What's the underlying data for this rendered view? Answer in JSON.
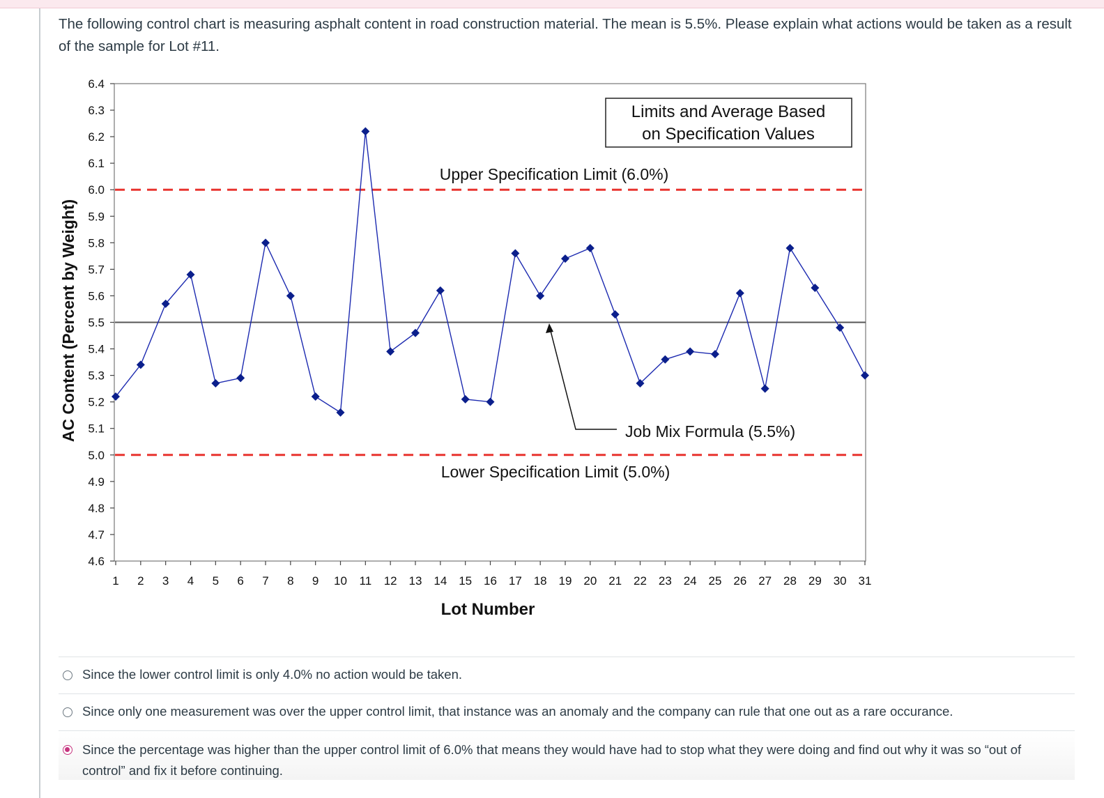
{
  "question": {
    "text": "The following control chart is measuring asphalt content in road construction material. The mean is 5.5%.  Please explain what actions would be taken as a result of the sample for Lot #11."
  },
  "chart_data": {
    "type": "line",
    "ylabel": "AC Content (Percent by Weight)",
    "xlabel": "Lot Number",
    "ylim": [
      4.6,
      6.4
    ],
    "y_ticks": [
      "4.6",
      "4.7",
      "4.8",
      "4.9",
      "5.0",
      "5.1",
      "5.2",
      "5.3",
      "5.4",
      "5.5",
      "5.6",
      "5.7",
      "5.8",
      "5.9",
      "6.0",
      "6.1",
      "6.2",
      "6.3",
      "6.4"
    ],
    "x": [
      1,
      2,
      3,
      4,
      5,
      6,
      7,
      8,
      9,
      10,
      11,
      12,
      13,
      14,
      15,
      16,
      17,
      18,
      19,
      20,
      21,
      22,
      23,
      24,
      25,
      26,
      27,
      28,
      29,
      30,
      31
    ],
    "values": [
      5.22,
      5.34,
      5.57,
      5.68,
      5.27,
      5.29,
      5.8,
      5.6,
      5.22,
      5.16,
      6.22,
      5.39,
      5.46,
      5.62,
      5.21,
      5.2,
      5.76,
      5.6,
      5.74,
      5.78,
      5.53,
      5.27,
      5.36,
      5.39,
      5.38,
      5.61,
      5.25,
      5.78,
      5.63,
      5.48,
      5.3
    ],
    "upper_limit": {
      "value": 6.0,
      "label": "Upper Specification Limit (6.0%)"
    },
    "lower_limit": {
      "value": 5.0,
      "label": "Lower Specification Limit (5.0%)"
    },
    "mean_line": {
      "value": 5.5,
      "label": "Job Mix Formula (5.5%)"
    },
    "legend_box": "Limits and Average Based on Specification Values",
    "colors": {
      "series": "#0b1f8c",
      "limits": "#e8332f",
      "mean": "#555555"
    }
  },
  "answers": [
    {
      "text": "Since the lower control limit is only 4.0% no action would be taken.",
      "selected": false
    },
    {
      "text": "Since only one measurement was over the upper control limit, that instance was an anomaly and the company can rule that one out as a rare occurance.",
      "selected": false
    },
    {
      "text": "Since the percentage was higher than the upper control limit of 6.0% that means they would have had to stop what they were doing and find out why it was so “out of control” and fix it before continuing.",
      "selected": true
    }
  ],
  "colors": {
    "accent": "#c6357f",
    "text": "#2d3b45"
  }
}
